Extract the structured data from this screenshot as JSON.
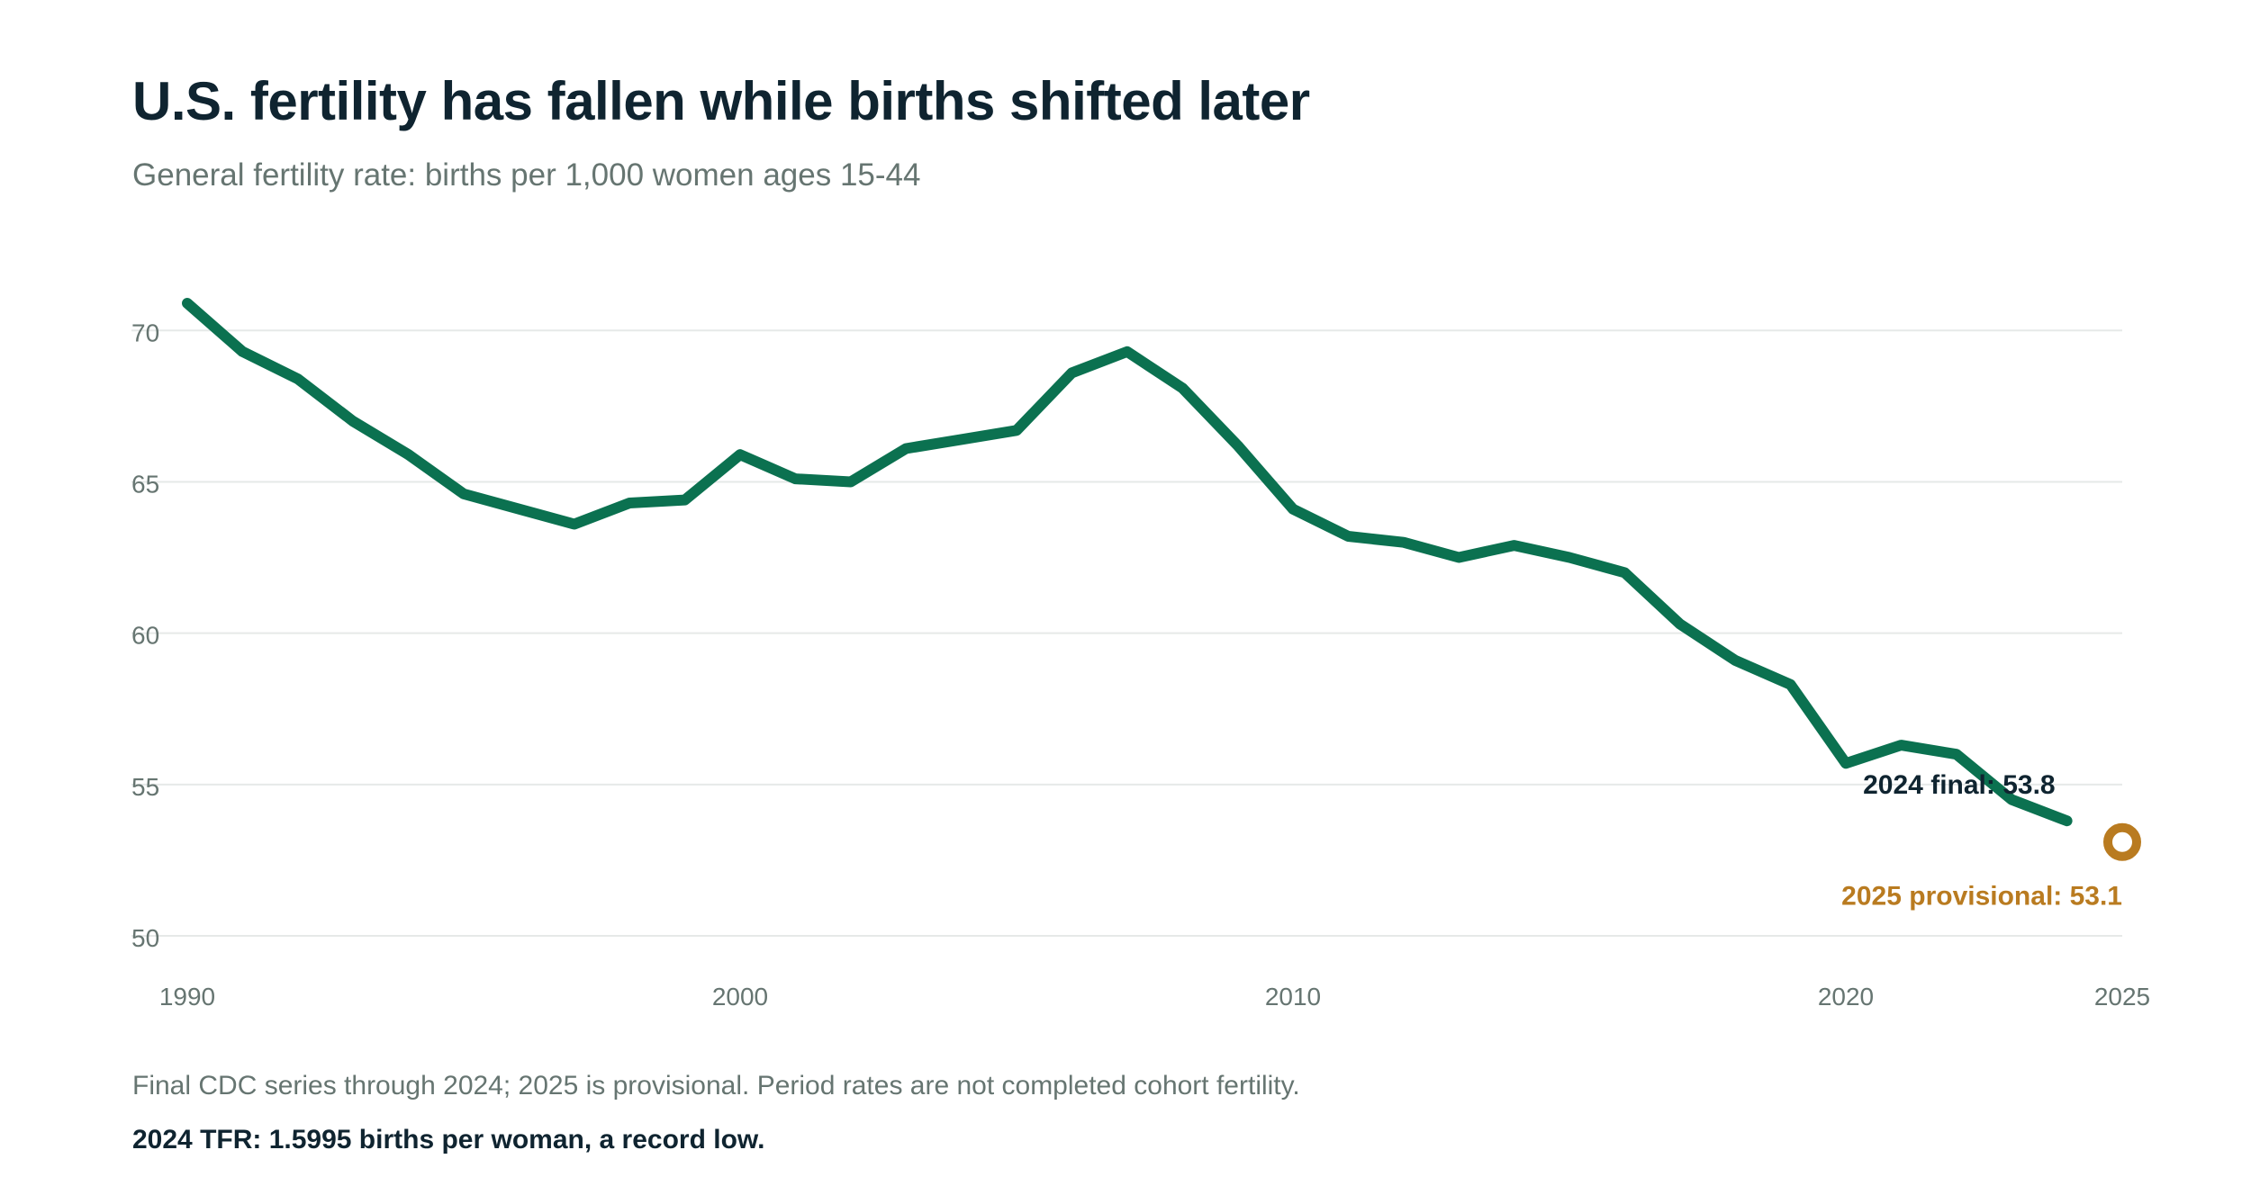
{
  "chart_data": {
    "type": "line",
    "title": "U.S. fertility has fallen while births shifted later",
    "subtitle": "General fertility rate: births per 1,000 women ages 15-44",
    "xlim": [
      1990,
      2025
    ],
    "ylim": [
      50,
      72
    ],
    "y_ticks": [
      "50",
      "55",
      "60",
      "65",
      "70"
    ],
    "x_ticks": [
      "1990",
      "2000",
      "2010",
      "2020",
      "2025"
    ],
    "grid": "horizontal",
    "series": [
      {
        "color": "#0b7150",
        "x": [
          1990,
          1991,
          1992,
          1993,
          1994,
          1995,
          1996,
          1997,
          1998,
          1999,
          2000,
          2001,
          2002,
          2003,
          2004,
          2005,
          2006,
          2007,
          2008,
          2009,
          2010,
          2011,
          2012,
          2013,
          2014,
          2015,
          2016,
          2017,
          2018,
          2019,
          2020,
          2021,
          2022,
          2023,
          2024
        ],
        "y": [
          70.9,
          69.3,
          68.4,
          67.0,
          65.9,
          64.6,
          64.1,
          63.6,
          64.3,
          64.4,
          65.9,
          65.1,
          65.0,
          66.1,
          66.4,
          66.7,
          68.6,
          69.3,
          68.1,
          66.2,
          64.1,
          63.2,
          63.0,
          62.5,
          62.9,
          62.5,
          62.0,
          60.3,
          59.1,
          58.3,
          55.7,
          56.3,
          56.0,
          54.5,
          53.8
        ]
      },
      {
        "color": "#b97b20",
        "marker": "ring",
        "x": [
          2025
        ],
        "y": [
          53.1
        ]
      }
    ],
    "annotations": [
      {
        "text": "2024 final: 53.8",
        "x": 2024,
        "y": 53.8,
        "color": "#0f2430"
      },
      {
        "text": "2025 provisional: 53.1",
        "x": 2025,
        "y": 53.1,
        "color": "#b97b20"
      }
    ]
  },
  "notes": {
    "source": "Final CDC series through 2024; 2025 is provisional. Period rates are not completed cohort fertility.",
    "highlight": "2024 TFR: 1.5995 births per woman, a record low."
  },
  "colors": {
    "line": "#0b7150",
    "provisional": "#b97b20",
    "grid": "#e6e9e8",
    "axis_text": "#667571",
    "title_text": "#0f2430"
  }
}
